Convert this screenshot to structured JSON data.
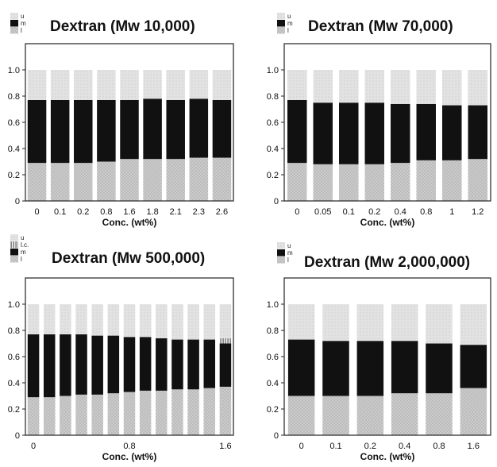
{
  "colors": {
    "u": "#dcdcdc",
    "m": "#111111",
    "l": "#c6c6c6",
    "lc": "#7c7c7c",
    "frame": "#222222",
    "gap": "#ffffff"
  },
  "chart_data": [
    {
      "type": "bar",
      "stacked": true,
      "title": "Dextran (Mw 10,000)",
      "xlabel": "Conc. (wt%)",
      "ylabel": "",
      "ylim": [
        0,
        1.2
      ],
      "yticks": [
        "0",
        "0.2",
        "0.4",
        "0.6",
        "0.8",
        "1.0"
      ],
      "categories": [
        "0",
        "0.1",
        "0.2",
        "0.8",
        "1.6",
        "1.8",
        "2.1",
        "2.3",
        "2.6"
      ],
      "legend": [
        "u",
        "m",
        "l"
      ],
      "legend_position": "top-left",
      "series": [
        {
          "name": "l",
          "values": [
            0.29,
            0.29,
            0.29,
            0.3,
            0.32,
            0.32,
            0.32,
            0.33,
            0.33
          ]
        },
        {
          "name": "m",
          "values": [
            0.48,
            0.48,
            0.48,
            0.47,
            0.45,
            0.46,
            0.45,
            0.45,
            0.44
          ]
        },
        {
          "name": "u",
          "values": [
            0.23,
            0.23,
            0.23,
            0.23,
            0.23,
            0.22,
            0.23,
            0.22,
            0.23
          ]
        }
      ]
    },
    {
      "type": "bar",
      "stacked": true,
      "title": "Dextran (Mw 70,000)",
      "xlabel": "Conc. (wt%)",
      "ylabel": "",
      "ylim": [
        0,
        1.2
      ],
      "yticks": [
        "0",
        "0.2",
        "0.4",
        "0.6",
        "0.8",
        "1.0"
      ],
      "categories": [
        "0",
        "0.05",
        "0.1",
        "0.2",
        "0.4",
        "0.8",
        "1",
        "1.2"
      ],
      "legend": [
        "u",
        "m",
        "l"
      ],
      "legend_position": "top-left",
      "series": [
        {
          "name": "l",
          "values": [
            0.29,
            0.28,
            0.28,
            0.28,
            0.29,
            0.31,
            0.31,
            0.32
          ]
        },
        {
          "name": "m",
          "values": [
            0.48,
            0.47,
            0.47,
            0.47,
            0.45,
            0.43,
            0.42,
            0.41
          ]
        },
        {
          "name": "u",
          "values": [
            0.23,
            0.25,
            0.25,
            0.25,
            0.26,
            0.26,
            0.27,
            0.27
          ]
        }
      ]
    },
    {
      "type": "bar",
      "stacked": true,
      "title": "Dextran (Mw 500,000)",
      "xlabel": "Conc. (wt%)",
      "ylabel": "",
      "ylim": [
        0,
        1.2
      ],
      "yticks": [
        "0",
        "0.2",
        "0.4",
        "0.6",
        "0.8",
        "1.0"
      ],
      "categories": [
        "0",
        "",
        "",
        "",
        "",
        "",
        "0.8",
        "",
        "",
        "",
        "",
        "",
        "1.6"
      ],
      "legend": [
        "u",
        "l.c.",
        "m",
        "l"
      ],
      "legend_position": "top-left",
      "series": [
        {
          "name": "l",
          "values": [
            0.29,
            0.29,
            0.3,
            0.31,
            0.31,
            0.32,
            0.33,
            0.34,
            0.34,
            0.35,
            0.35,
            0.36,
            0.37
          ]
        },
        {
          "name": "m",
          "values": [
            0.48,
            0.48,
            0.47,
            0.46,
            0.45,
            0.44,
            0.42,
            0.41,
            0.4,
            0.38,
            0.38,
            0.37,
            0.33
          ]
        },
        {
          "name": "l.c.",
          "values": [
            0,
            0,
            0,
            0,
            0,
            0,
            0,
            0,
            0,
            0,
            0,
            0,
            0.04
          ]
        },
        {
          "name": "u",
          "values": [
            0.23,
            0.23,
            0.23,
            0.23,
            0.24,
            0.24,
            0.25,
            0.25,
            0.26,
            0.27,
            0.27,
            0.27,
            0.26
          ]
        }
      ]
    },
    {
      "type": "bar",
      "stacked": true,
      "title": "Dextran (Mw 2,000,000)",
      "xlabel": "Conc. (wt%)",
      "ylabel": "",
      "ylim": [
        0,
        1.2
      ],
      "yticks": [
        "0",
        "0.2",
        "0.4",
        "0.6",
        "0.8",
        "1.0"
      ],
      "categories": [
        "0",
        "0.1",
        "0.2",
        "0.4",
        "0.8",
        "1.6"
      ],
      "legend": [
        "u",
        "m",
        "l"
      ],
      "legend_position": "top-left",
      "series": [
        {
          "name": "l",
          "values": [
            0.3,
            0.3,
            0.3,
            0.32,
            0.32,
            0.36
          ]
        },
        {
          "name": "m",
          "values": [
            0.43,
            0.42,
            0.42,
            0.4,
            0.38,
            0.33
          ]
        },
        {
          "name": "u",
          "values": [
            0.27,
            0.28,
            0.28,
            0.28,
            0.3,
            0.31
          ]
        }
      ]
    }
  ]
}
